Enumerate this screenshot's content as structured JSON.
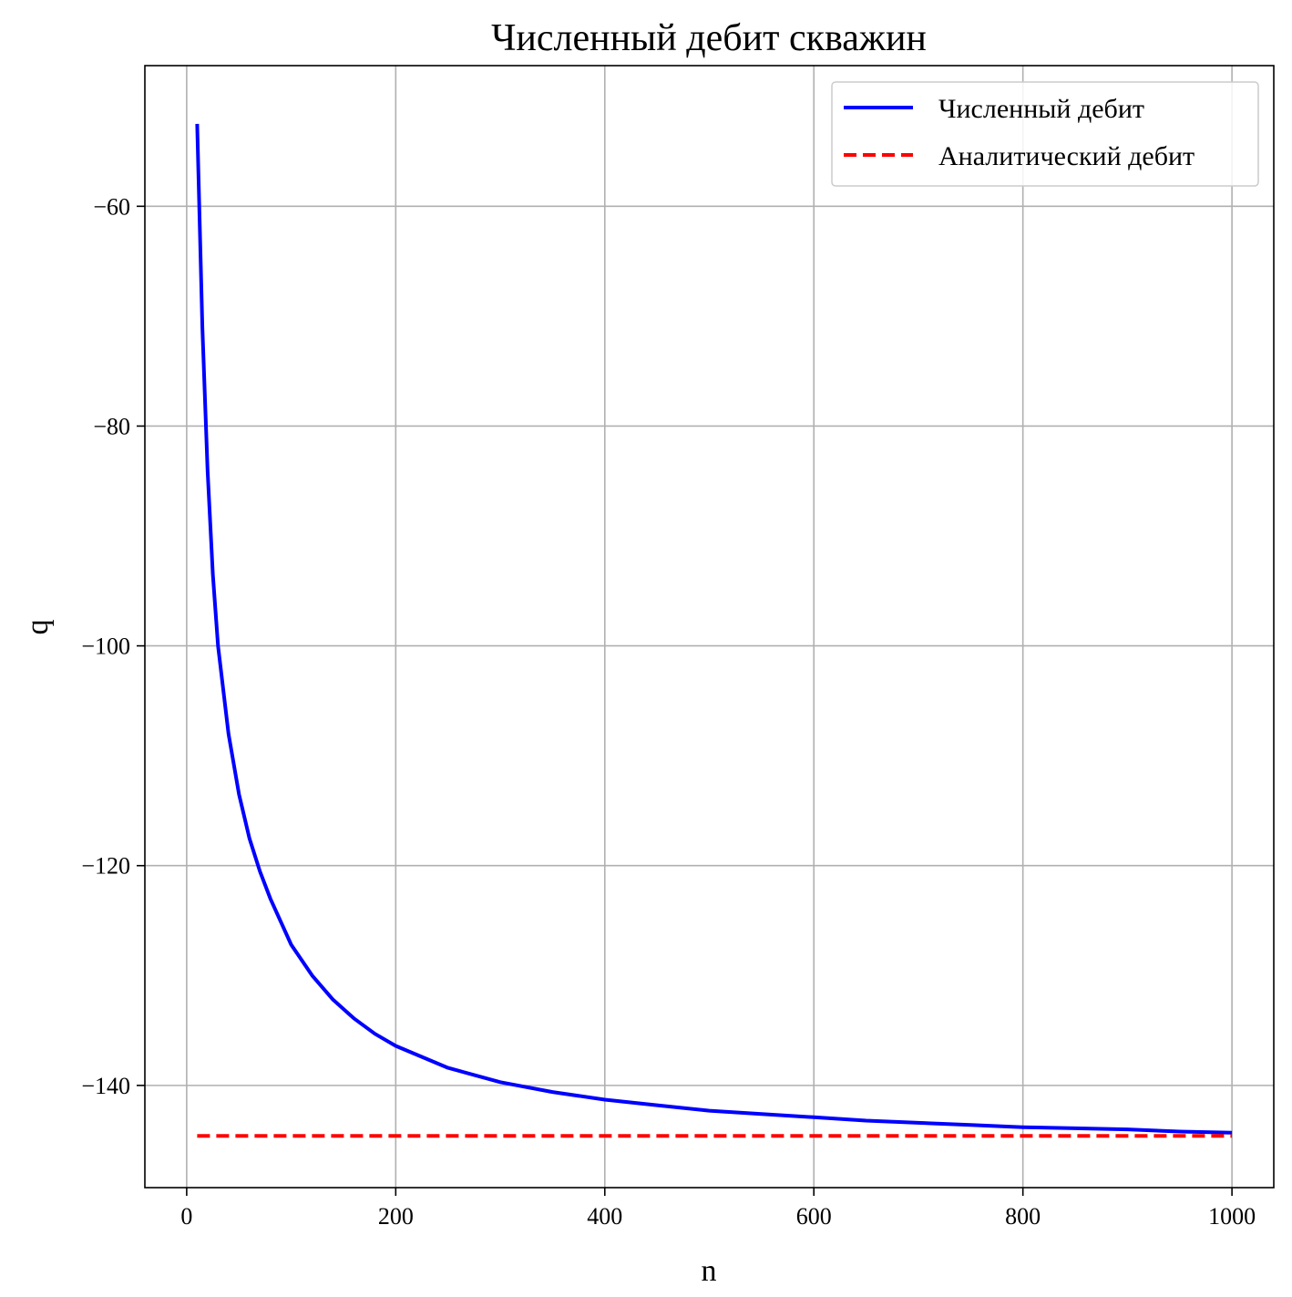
{
  "chart_data": {
    "type": "line",
    "title": "Численный дебит скважин",
    "xlabel": "n",
    "ylabel": "q",
    "xlim": [
      -40,
      1040
    ],
    "ylim": [
      -149.3,
      -47.2
    ],
    "xticks": [
      0,
      200,
      400,
      600,
      800,
      1000
    ],
    "xtick_labels": [
      "0",
      "200",
      "400",
      "600",
      "800",
      "1000"
    ],
    "yticks": [
      -60,
      -80,
      -100,
      -120,
      -140
    ],
    "ytick_labels": [
      "−60",
      "−80",
      "−100",
      "−120",
      "−140"
    ],
    "grid": true,
    "legend_position": "top-right",
    "series": [
      {
        "name": "Численный дебит",
        "color": "#0000ff",
        "style": "solid",
        "x": [
          10,
          15,
          20,
          25,
          30,
          40,
          50,
          60,
          70,
          80,
          100,
          120,
          140,
          160,
          180,
          200,
          250,
          300,
          350,
          400,
          450,
          500,
          550,
          600,
          650,
          700,
          750,
          800,
          850,
          900,
          950,
          1000
        ],
        "y": [
          -52.5,
          -71.0,
          -84.0,
          -93.5,
          -100.0,
          -108.0,
          -113.5,
          -117.5,
          -120.5,
          -123.0,
          -127.2,
          -130.0,
          -132.2,
          -133.9,
          -135.3,
          -136.4,
          -138.4,
          -139.7,
          -140.6,
          -141.3,
          -141.8,
          -142.3,
          -142.6,
          -142.9,
          -143.2,
          -143.4,
          -143.6,
          -143.8,
          -143.9,
          -144.0,
          -144.2,
          -144.3
        ]
      },
      {
        "name": "Аналитический дебит",
        "color": "#ff0000",
        "style": "dashed",
        "x": [
          10,
          1000
        ],
        "y": [
          -144.6,
          -144.6
        ]
      }
    ]
  }
}
